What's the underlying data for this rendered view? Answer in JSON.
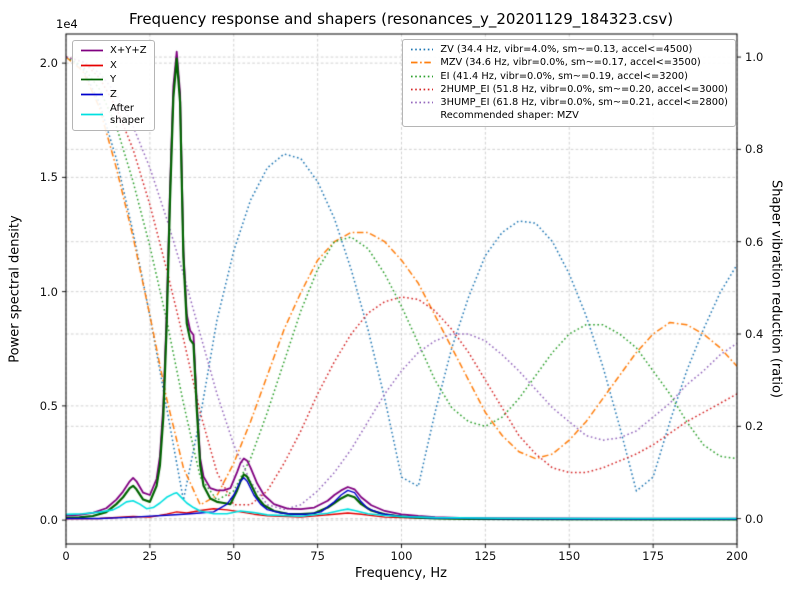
{
  "chart_data": {
    "type": "line",
    "title": "Frequency response and shapers (resonances_y_20201129_184323.csv)",
    "xlabel": "Frequency, Hz",
    "ylabel_left": "Power spectral density",
    "ylabel_right": "Shaper vibration reduction (ratio)",
    "offset_text": "1e4",
    "grid": true,
    "legend_left_position": "upper left",
    "legend_right_position": "upper right",
    "x_lim": [
      0,
      200
    ],
    "x_ticks": [
      0,
      25,
      50,
      75,
      100,
      125,
      150,
      175,
      200
    ],
    "x_tick_labels": [
      "0",
      "25",
      "50",
      "75",
      "100",
      "125",
      "150",
      "175",
      "200"
    ],
    "left_axis": {
      "lim": [
        -1045,
        21275
      ],
      "ticks": [
        0,
        5000,
        10000,
        15000,
        20000
      ],
      "tick_labels": [
        "0.0",
        "0.5",
        "1.0",
        "1.5",
        "2.0"
      ]
    },
    "right_axis": {
      "lim": [
        -0.055,
        1.05
      ],
      "ticks": [
        0,
        0.2,
        0.4,
        0.6,
        0.8,
        1.0
      ],
      "tick_labels": [
        "0.0",
        "0.2",
        "0.4",
        "0.6",
        "0.8",
        "1.0"
      ]
    },
    "psd_series": [
      {
        "name": "X+Y+Z",
        "legend_label": "X+Y+Z",
        "color": "#800080",
        "lw": 1.8,
        "x": [
          0,
          4,
          8,
          12,
          15,
          17,
          19,
          20,
          21,
          23,
          25,
          27,
          28,
          29,
          30,
          31,
          32,
          33,
          34,
          35,
          36,
          37,
          38,
          39,
          40,
          41,
          43,
          45,
          47,
          49,
          51,
          52,
          53,
          54,
          55,
          57,
          59,
          62,
          66,
          70,
          74,
          78,
          80,
          82,
          84,
          86,
          88,
          91,
          95,
          100,
          105,
          110,
          120,
          140,
          170,
          200
        ],
        "y": [
          200,
          230,
          320,
          520,
          900,
          1250,
          1700,
          1850,
          1700,
          1200,
          1100,
          1800,
          2800,
          5000,
          9000,
          14500,
          19000,
          20500,
          18700,
          11800,
          9000,
          8300,
          8100,
          5100,
          2700,
          1900,
          1400,
          1300,
          1300,
          1400,
          2100,
          2500,
          2700,
          2600,
          2300,
          1600,
          1100,
          700,
          500,
          480,
          550,
          850,
          1100,
          1300,
          1450,
          1350,
          1000,
          650,
          400,
          250,
          180,
          130,
          90,
          70,
          60,
          60
        ]
      },
      {
        "name": "X",
        "legend_label": "X",
        "color": "#e60000",
        "lw": 1.4,
        "x": [
          0,
          10,
          20,
          25,
          30,
          33,
          36,
          40,
          44,
          48,
          52,
          56,
          60,
          70,
          80,
          84,
          88,
          95,
          105,
          120,
          150,
          200
        ],
        "y": [
          60,
          70,
          160,
          130,
          260,
          360,
          310,
          420,
          500,
          450,
          360,
          260,
          190,
          130,
          260,
          310,
          260,
          130,
          90,
          60,
          40,
          35
        ]
      },
      {
        "name": "Y",
        "legend_label": "Y",
        "color": "#006400",
        "lw": 2.2,
        "x": [
          0,
          4,
          8,
          12,
          15,
          17,
          19,
          20,
          21,
          23,
          25,
          27,
          28,
          29,
          30,
          31,
          32,
          33,
          34,
          35,
          36,
          37,
          38,
          39,
          40,
          41,
          43,
          45,
          47,
          49,
          51,
          52,
          53,
          54,
          55,
          57,
          59,
          62,
          66,
          70,
          74,
          78,
          80,
          82,
          84,
          86,
          88,
          91,
          95,
          100,
          105,
          110,
          120,
          140,
          170,
          200
        ],
        "y": [
          100,
          120,
          180,
          350,
          700,
          1000,
          1400,
          1500,
          1350,
          900,
          800,
          1500,
          2400,
          4500,
          8500,
          14000,
          18500,
          20200,
          18300,
          11500,
          8600,
          7900,
          7700,
          4800,
          2400,
          1500,
          950,
          800,
          750,
          700,
          1300,
          1700,
          2000,
          1900,
          1600,
          1000,
          650,
          400,
          280,
          260,
          300,
          550,
          750,
          950,
          1100,
          1000,
          700,
          420,
          250,
          150,
          110,
          80,
          50,
          40,
          35,
          35
        ]
      },
      {
        "name": "Z",
        "legend_label": "Z",
        "color": "#0000cd",
        "lw": 1.4,
        "x": [
          0,
          10,
          20,
          30,
          35,
          40,
          44,
          48,
          50,
          52,
          53,
          54,
          56,
          58,
          60,
          64,
          68,
          72,
          76,
          80,
          82,
          84,
          86,
          88,
          90,
          94,
          98,
          103,
          110,
          130,
          160,
          200
        ],
        "y": [
          70,
          70,
          130,
          210,
          260,
          310,
          360,
          700,
          1100,
          1700,
          1850,
          1700,
          1100,
          700,
          460,
          310,
          260,
          260,
          360,
          800,
          1100,
          1300,
          1200,
          800,
          500,
          280,
          190,
          130,
          90,
          55,
          45,
          45
        ]
      },
      {
        "name": "After shaper",
        "legend_label": "After\nshaper",
        "color": "#00e0e0",
        "lw": 1.6,
        "x": [
          0,
          5,
          10,
          14,
          16,
          18,
          20,
          22,
          24,
          26,
          28,
          30,
          32,
          33,
          34,
          36,
          38,
          40,
          44,
          48,
          52,
          56,
          60,
          70,
          78,
          82,
          84,
          86,
          90,
          95,
          100,
          110,
          130,
          160,
          200
        ],
        "y": [
          250,
          280,
          350,
          450,
          600,
          800,
          850,
          700,
          500,
          550,
          750,
          1000,
          1150,
          1200,
          1050,
          750,
          550,
          400,
          280,
          280,
          400,
          330,
          230,
          170,
          300,
          430,
          480,
          420,
          280,
          200,
          160,
          110,
          85,
          70,
          70
        ]
      }
    ],
    "shaper_x": [
      0,
      5,
      10,
      15,
      20,
      25,
      30,
      35,
      40,
      45,
      50,
      55,
      60,
      65,
      70,
      75,
      80,
      85,
      90,
      95,
      100,
      105,
      110,
      115,
      120,
      125,
      130,
      135,
      140,
      145,
      150,
      155,
      160,
      165,
      170,
      175,
      180,
      185,
      190,
      195,
      200
    ],
    "shaper_series": [
      {
        "name": "ZV",
        "label": "ZV (34.4 Hz, vibr=4.0%, sm~=0.13, accel<=4500)",
        "color": "#1f77b4",
        "dash": "dot",
        "y": [
          1.0,
          0.975,
          0.9,
          0.78,
          0.62,
          0.44,
          0.24,
          0.04,
          0.22,
          0.43,
          0.58,
          0.69,
          0.76,
          0.79,
          0.78,
          0.73,
          0.65,
          0.54,
          0.41,
          0.26,
          0.09,
          0.07,
          0.23,
          0.37,
          0.48,
          0.57,
          0.62,
          0.645,
          0.64,
          0.6,
          0.53,
          0.44,
          0.33,
          0.2,
          0.06,
          0.09,
          0.21,
          0.32,
          0.41,
          0.49,
          0.55
        ]
      },
      {
        "name": "MZV",
        "label": "MZV (34.6 Hz, vibr=0.0%, sm~=0.17, accel<=3500)",
        "color": "#ff7f0e",
        "dash": "dashdot",
        "y": [
          1.0,
          0.97,
          0.89,
          0.76,
          0.61,
          0.44,
          0.26,
          0.11,
          0.03,
          0.05,
          0.12,
          0.21,
          0.31,
          0.41,
          0.49,
          0.56,
          0.6,
          0.62,
          0.62,
          0.6,
          0.56,
          0.51,
          0.44,
          0.37,
          0.3,
          0.23,
          0.18,
          0.145,
          0.13,
          0.14,
          0.17,
          0.21,
          0.26,
          0.31,
          0.36,
          0.4,
          0.425,
          0.42,
          0.4,
          0.37,
          0.33
        ]
      },
      {
        "name": "EI",
        "label": "EI (41.4 Hz, vibr=0.0%, sm~=0.19, accel<=3200)",
        "color": "#2ca02c",
        "dash": "dot",
        "y": [
          1.0,
          0.98,
          0.93,
          0.85,
          0.73,
          0.59,
          0.43,
          0.25,
          0.09,
          0.04,
          0.06,
          0.13,
          0.23,
          0.34,
          0.45,
          0.54,
          0.6,
          0.61,
          0.585,
          0.53,
          0.46,
          0.38,
          0.3,
          0.24,
          0.21,
          0.2,
          0.22,
          0.26,
          0.31,
          0.36,
          0.4,
          0.42,
          0.42,
          0.4,
          0.37,
          0.32,
          0.27,
          0.21,
          0.16,
          0.135,
          0.13
        ]
      },
      {
        "name": "2HUMP_EI",
        "label": "2HUMP_EI (51.8 Hz, vibr=0.0%, sm~=0.20, accel<=3000)",
        "color": "#d62728",
        "dash": "dot",
        "y": [
          1.0,
          0.99,
          0.955,
          0.89,
          0.8,
          0.68,
          0.54,
          0.39,
          0.23,
          0.1,
          0.03,
          0.03,
          0.06,
          0.12,
          0.19,
          0.27,
          0.34,
          0.4,
          0.445,
          0.47,
          0.48,
          0.475,
          0.45,
          0.41,
          0.36,
          0.3,
          0.24,
          0.18,
          0.14,
          0.11,
          0.1,
          0.1,
          0.11,
          0.125,
          0.14,
          0.16,
          0.185,
          0.21,
          0.23,
          0.25,
          0.27
        ]
      },
      {
        "name": "3HUMP_EI",
        "label": "3HUMP_EI (61.8 Hz, vibr=0.0%, sm~=0.21, accel<=2800)",
        "color": "#9467bd",
        "dash": "dot",
        "y": [
          1.0,
          0.99,
          0.965,
          0.92,
          0.85,
          0.76,
          0.65,
          0.53,
          0.4,
          0.27,
          0.16,
          0.08,
          0.03,
          0.02,
          0.03,
          0.06,
          0.1,
          0.15,
          0.21,
          0.27,
          0.32,
          0.36,
          0.385,
          0.4,
          0.4,
          0.385,
          0.355,
          0.32,
          0.28,
          0.24,
          0.21,
          0.18,
          0.17,
          0.175,
          0.19,
          0.22,
          0.25,
          0.29,
          0.32,
          0.355,
          0.38
        ]
      }
    ],
    "recommended_label": "Recommended shaper: MZV"
  }
}
